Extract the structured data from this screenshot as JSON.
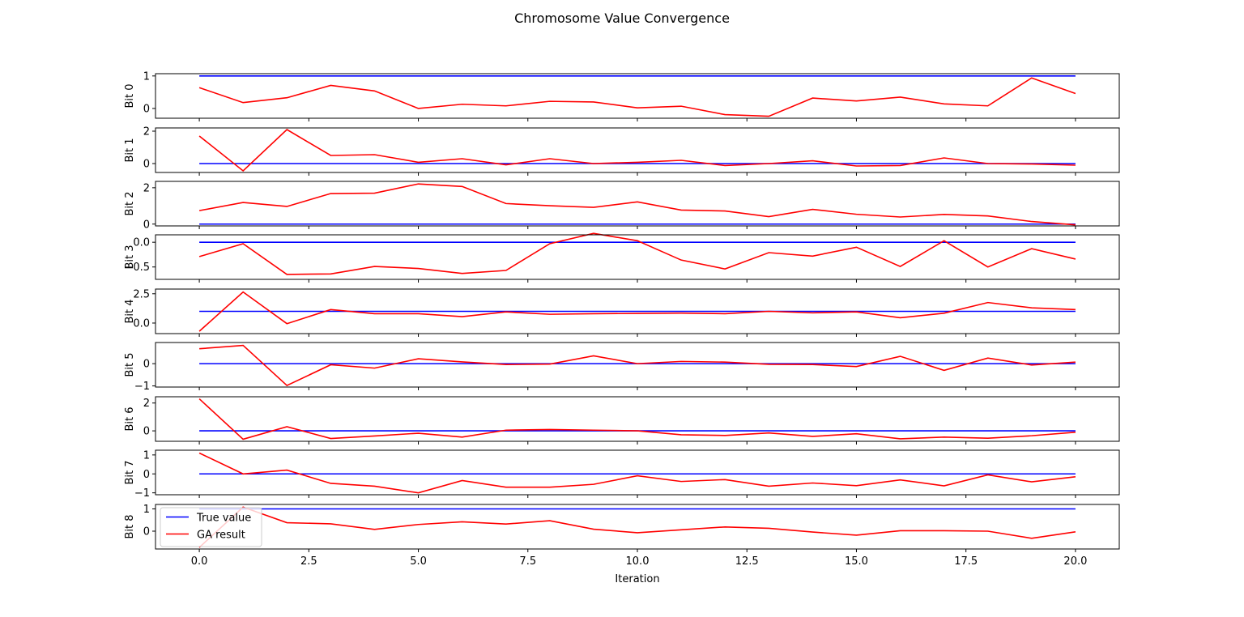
{
  "chart_data": {
    "type": "line",
    "title": "Chromosome Value Convergence",
    "xlabel": "Iteration",
    "xlim": [
      -1,
      21
    ],
    "x": [
      0,
      1,
      2,
      3,
      4,
      5,
      6,
      7,
      8,
      9,
      10,
      11,
      12,
      13,
      14,
      15,
      16,
      17,
      18,
      19,
      20
    ],
    "x_ticks": [
      0,
      2.5,
      5,
      7.5,
      10,
      12.5,
      15,
      17.5,
      20
    ],
    "x_tick_labels": [
      "0.0",
      "2.5",
      "5.0",
      "7.5",
      "10.0",
      "12.5",
      "15.0",
      "17.5",
      "20.0"
    ],
    "grid": false,
    "legend": {
      "placement": "lower-left of bottom panel",
      "entries": [
        {
          "label": "True value",
          "color": "#0000ff"
        },
        {
          "label": "GA result",
          "color": "#ff0000"
        }
      ]
    },
    "colors": {
      "true_value": "#0000ff",
      "ga_result": "#ff0000"
    },
    "panels": [
      {
        "ylabel": "Bit 0",
        "ylim": [
          -0.3,
          1.07
        ],
        "yticks": [
          0,
          1
        ],
        "ytick_labels": [
          "0",
          "1"
        ],
        "series": [
          {
            "name": "True value",
            "values": [
              1,
              1,
              1,
              1,
              1,
              1,
              1,
              1,
              1,
              1,
              1,
              1,
              1,
              1,
              1,
              1,
              1,
              1,
              1,
              1,
              1
            ]
          },
          {
            "name": "GA result",
            "values": [
              0.64,
              0.18,
              0.33,
              0.71,
              0.54,
              0.0,
              0.13,
              0.08,
              0.22,
              0.2,
              0.02,
              0.07,
              -0.19,
              -0.24,
              0.32,
              0.23,
              0.35,
              0.14,
              0.08,
              0.94,
              0.46
            ]
          }
        ]
      },
      {
        "ylabel": "Bit 1",
        "ylim": [
          -0.55,
          2.2
        ],
        "yticks": [
          0,
          2
        ],
        "ytick_labels": [
          "0",
          "2"
        ],
        "series": [
          {
            "name": "True value",
            "values": [
              0,
              0,
              0,
              0,
              0,
              0,
              0,
              0,
              0,
              0,
              0,
              0,
              0,
              0,
              0,
              0,
              0,
              0,
              0,
              0,
              0
            ]
          },
          {
            "name": "GA result",
            "values": [
              1.7,
              -0.45,
              2.1,
              0.5,
              0.55,
              0.08,
              0.3,
              -0.08,
              0.3,
              0.0,
              0.08,
              0.2,
              -0.12,
              0.0,
              0.17,
              -0.15,
              -0.12,
              0.35,
              0.0,
              -0.03,
              -0.1
            ]
          }
        ]
      },
      {
        "ylabel": "Bit 2",
        "ylim": [
          -0.1,
          2.35
        ],
        "yticks": [
          0,
          2
        ],
        "ytick_labels": [
          "0",
          "2"
        ],
        "series": [
          {
            "name": "True value",
            "values": [
              0,
              0,
              0,
              0,
              0,
              0,
              0,
              0,
              0,
              0,
              0,
              0,
              0,
              0,
              0,
              0,
              0,
              0,
              0,
              0,
              0
            ]
          },
          {
            "name": "GA result",
            "values": [
              0.74,
              1.19,
              0.97,
              1.68,
              1.7,
              2.21,
              2.07,
              1.13,
              1.01,
              0.92,
              1.22,
              0.77,
              0.72,
              0.41,
              0.81,
              0.54,
              0.39,
              0.53,
              0.45,
              0.14,
              -0.04
            ]
          }
        ]
      },
      {
        "ylabel": "Bit 3",
        "ylim": [
          -0.75,
          0.15
        ],
        "yticks": [
          -0.5,
          0.0
        ],
        "ytick_labels": [
          "−0.5",
          "0.0"
        ],
        "series": [
          {
            "name": "True value",
            "values": [
              0,
              0,
              0,
              0,
              0,
              0,
              0,
              0,
              0,
              0,
              0,
              0,
              0,
              0,
              0,
              0,
              0,
              0,
              0,
              0,
              0
            ]
          },
          {
            "name": "GA result",
            "values": [
              -0.29,
              -0.03,
              -0.65,
              -0.64,
              -0.49,
              -0.53,
              -0.63,
              -0.57,
              -0.03,
              0.18,
              0.03,
              -0.36,
              -0.54,
              -0.21,
              -0.28,
              -0.1,
              -0.49,
              0.03,
              -0.5,
              -0.13,
              -0.34
            ]
          }
        ]
      },
      {
        "ylabel": "Bit 4",
        "ylim": [
          -0.9,
          2.9
        ],
        "yticks": [
          0.0,
          2.5
        ],
        "ytick_labels": [
          "0.0",
          "2.5"
        ],
        "series": [
          {
            "name": "True value",
            "values": [
              1,
              1,
              1,
              1,
              1,
              1,
              1,
              1,
              1,
              1,
              1,
              1,
              1,
              1,
              1,
              1,
              1,
              1,
              1,
              1,
              1
            ]
          },
          {
            "name": "GA result",
            "values": [
              -0.7,
              2.65,
              -0.05,
              1.15,
              0.8,
              0.8,
              0.55,
              0.95,
              0.75,
              0.8,
              0.82,
              0.85,
              0.8,
              1.0,
              0.87,
              0.95,
              0.45,
              0.84,
              1.75,
              1.3,
              1.15
            ]
          }
        ]
      },
      {
        "ylabel": "Bit 5",
        "ylim": [
          -1.05,
          0.95
        ],
        "yticks": [
          -1,
          0
        ],
        "ytick_labels": [
          "−1",
          "0"
        ],
        "series": [
          {
            "name": "True value",
            "values": [
              0,
              0,
              0,
              0,
              0,
              0,
              0,
              0,
              0,
              0,
              0,
              0,
              0,
              0,
              0,
              0,
              0,
              0,
              0,
              0,
              0
            ]
          },
          {
            "name": "GA result",
            "values": [
              0.67,
              0.82,
              -0.98,
              -0.05,
              -0.2,
              0.22,
              0.08,
              -0.04,
              -0.02,
              0.35,
              0.0,
              0.1,
              0.07,
              -0.03,
              -0.04,
              -0.13,
              0.33,
              -0.3,
              0.25,
              -0.06,
              0.07
            ]
          }
        ]
      },
      {
        "ylabel": "Bit 6",
        "ylim": [
          -0.75,
          2.45
        ],
        "yticks": [
          0,
          2
        ],
        "ytick_labels": [
          "0",
          "2"
        ],
        "series": [
          {
            "name": "True value",
            "values": [
              0,
              0,
              0,
              0,
              0,
              0,
              0,
              0,
              0,
              0,
              0,
              0,
              0,
              0,
              0,
              0,
              0,
              0,
              0,
              0,
              0
            ]
          },
          {
            "name": "GA result",
            "values": [
              2.3,
              -0.6,
              0.3,
              -0.55,
              -0.37,
              -0.17,
              -0.45,
              0.05,
              0.1,
              0.05,
              0.0,
              -0.28,
              -0.33,
              -0.15,
              -0.4,
              -0.21,
              -0.57,
              -0.45,
              -0.53,
              -0.35,
              -0.1
            ]
          }
        ]
      },
      {
        "ylabel": "Bit 7",
        "ylim": [
          -1.1,
          1.25
        ],
        "yticks": [
          -1,
          0,
          1
        ],
        "ytick_labels": [
          "−1",
          "0",
          "1"
        ],
        "series": [
          {
            "name": "True value",
            "values": [
              0,
              0,
              0,
              0,
              0,
              0,
              0,
              0,
              0,
              0,
              0,
              0,
              0,
              0,
              0,
              0,
              0,
              0,
              0,
              0,
              0
            ]
          },
          {
            "name": "GA result",
            "values": [
              1.1,
              0.0,
              0.2,
              -0.5,
              -0.65,
              -1.0,
              -0.35,
              -0.7,
              -0.7,
              -0.55,
              -0.1,
              -0.4,
              -0.3,
              -0.65,
              -0.48,
              -0.62,
              -0.32,
              -0.63,
              -0.05,
              -0.42,
              -0.15
            ]
          }
        ]
      },
      {
        "ylabel": "Bit 8",
        "ylim": [
          -0.8,
          1.2
        ],
        "yticks": [
          0,
          1
        ],
        "ytick_labels": [
          "0",
          "1"
        ],
        "series": [
          {
            "name": "True value",
            "values": [
              1,
              1,
              1,
              1,
              1,
              1,
              1,
              1,
              1,
              1,
              1,
              1,
              1,
              1,
              1,
              1,
              1,
              1,
              1,
              1,
              1
            ]
          },
          {
            "name": "GA result",
            "values": [
              -0.73,
              1.08,
              0.38,
              0.33,
              0.08,
              0.3,
              0.42,
              0.32,
              0.47,
              0.09,
              -0.07,
              0.06,
              0.19,
              0.13,
              -0.04,
              -0.18,
              0.02,
              0.02,
              0.0,
              -0.32,
              -0.03
            ]
          }
        ]
      }
    ]
  }
}
